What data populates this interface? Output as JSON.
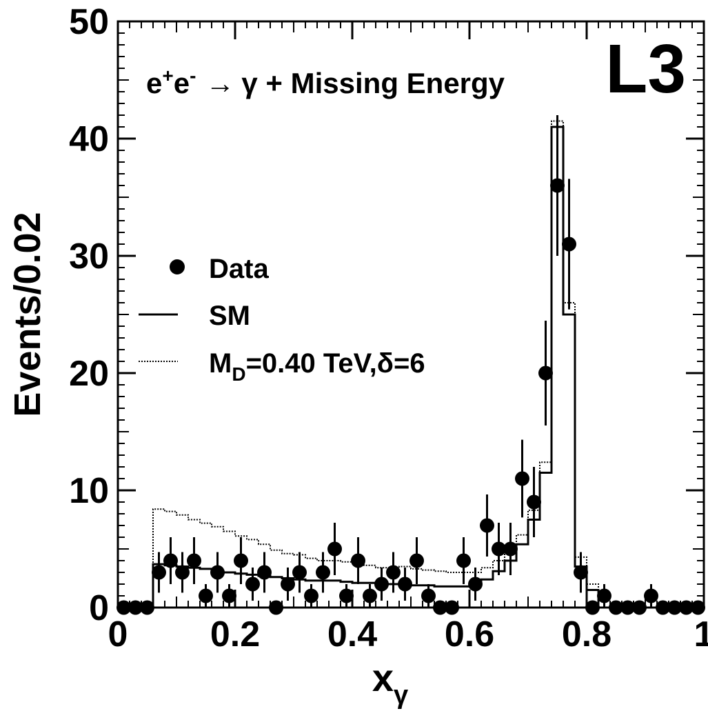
{
  "chart_data": {
    "type": "histogram",
    "experiment_label": "L3",
    "process_base": "e",
    "process_sup1": "+",
    "process_sup2": "-",
    "process_arrow": "→",
    "process_final": "γ + Missing Energy",
    "xlabel_base": "x",
    "xlabel_sub": "γ",
    "ylabel": "Events/0.02",
    "xlim": [
      0,
      1
    ],
    "ylim": [
      0,
      50
    ],
    "x_ticks": [
      "0",
      "0.2",
      "0.4",
      "0.6",
      "0.8",
      "1"
    ],
    "x_tick_values": [
      0,
      0.2,
      0.4,
      0.6,
      0.8,
      1.0
    ],
    "y_ticks": [
      "0",
      "10",
      "20",
      "30",
      "40",
      "50"
    ],
    "y_tick_values": [
      0,
      10,
      20,
      30,
      40,
      50
    ],
    "bin_width": 0.02,
    "grid": false,
    "legend": {
      "placement": "middle-left",
      "data_label": "Data",
      "sm_label": "SM",
      "signal_base": "M",
      "signal_sub": "D",
      "signal_rest": "=0.40 TeV,δ=6"
    },
    "data_points": {
      "x": [
        0.01,
        0.03,
        0.05,
        0.07,
        0.09,
        0.11,
        0.13,
        0.15,
        0.17,
        0.19,
        0.21,
        0.23,
        0.25,
        0.27,
        0.29,
        0.31,
        0.33,
        0.35,
        0.37,
        0.39,
        0.41,
        0.43,
        0.45,
        0.47,
        0.49,
        0.51,
        0.53,
        0.55,
        0.57,
        0.59,
        0.61,
        0.63,
        0.65,
        0.67,
        0.69,
        0.71,
        0.73,
        0.75,
        0.77,
        0.79,
        0.81,
        0.83,
        0.85,
        0.87,
        0.89,
        0.91,
        0.93,
        0.95,
        0.97,
        0.99
      ],
      "y": [
        0,
        0,
        0,
        3,
        4,
        3,
        4,
        1,
        3,
        1,
        4,
        2,
        3,
        0,
        2,
        3,
        1,
        3,
        5,
        1,
        4,
        1,
        2,
        3,
        2,
        4,
        1,
        0,
        0,
        4,
        2,
        7,
        5,
        5,
        11,
        9,
        20,
        36,
        31,
        3,
        0,
        1,
        0,
        0,
        0,
        1,
        0,
        0,
        0,
        0
      ]
    },
    "series": [
      {
        "name": "SM",
        "style": "solid",
        "bin_edges": [
          0,
          0.06,
          0.08,
          0.1,
          0.12,
          0.14,
          0.16,
          0.18,
          0.2,
          0.22,
          0.24,
          0.26,
          0.28,
          0.3,
          0.32,
          0.34,
          0.36,
          0.38,
          0.4,
          0.42,
          0.44,
          0.46,
          0.48,
          0.5,
          0.52,
          0.54,
          0.56,
          0.58,
          0.6,
          0.62,
          0.64,
          0.66,
          0.68,
          0.7,
          0.72,
          0.74,
          0.76,
          0.78,
          0.8,
          0.82,
          1.0
        ],
        "values": [
          0,
          3.7,
          3.6,
          3.5,
          3.4,
          3.3,
          3.1,
          3.0,
          2.9,
          2.8,
          2.7,
          2.6,
          2.5,
          2.4,
          2.3,
          2.3,
          2.3,
          2.2,
          2.1,
          2.1,
          2.0,
          2.0,
          2.0,
          1.9,
          1.9,
          1.8,
          1.8,
          1.8,
          1.9,
          2.4,
          3.1,
          4.0,
          5.4,
          7.5,
          11.5,
          41.0,
          25.0,
          3.5,
          1.5,
          0
        ]
      },
      {
        "name": "M_D=0.40 TeV,δ=6",
        "style": "dotted",
        "bin_edges": [
          0,
          0.06,
          0.08,
          0.1,
          0.12,
          0.14,
          0.16,
          0.18,
          0.2,
          0.22,
          0.24,
          0.26,
          0.28,
          0.3,
          0.32,
          0.34,
          0.36,
          0.38,
          0.4,
          0.42,
          0.44,
          0.46,
          0.48,
          0.5,
          0.52,
          0.54,
          0.56,
          0.58,
          0.6,
          0.62,
          0.64,
          0.66,
          0.68,
          0.7,
          0.72,
          0.74,
          0.76,
          0.78,
          0.8,
          0.82,
          1.0
        ],
        "values": [
          0,
          8.4,
          8.2,
          7.9,
          7.5,
          7.2,
          6.9,
          6.5,
          6.1,
          5.8,
          5.4,
          4.9,
          4.6,
          4.5,
          4.2,
          4.0,
          4.0,
          3.9,
          3.8,
          3.6,
          3.4,
          3.4,
          3.5,
          3.3,
          3.2,
          3.1,
          3.0,
          3.0,
          3.0,
          3.4,
          4.0,
          4.7,
          6.2,
          8.3,
          12.4,
          41.5,
          26.0,
          4.3,
          2.0,
          0
        ]
      }
    ]
  }
}
